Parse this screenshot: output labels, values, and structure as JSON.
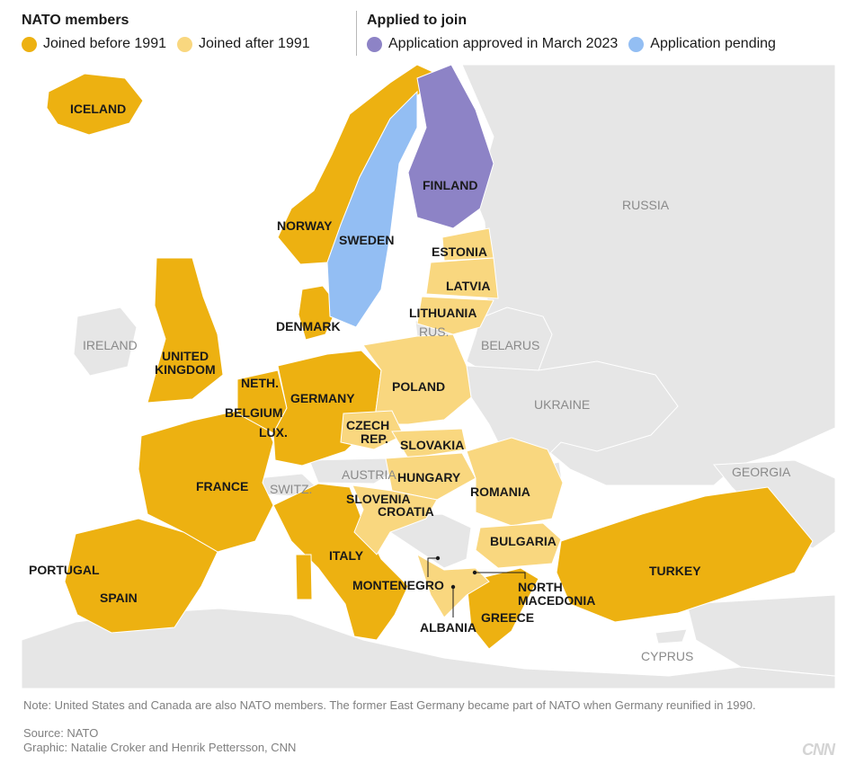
{
  "legend": {
    "members_title": "NATO members",
    "applied_title": "Applied to join",
    "items": {
      "before_1991": {
        "label": "Joined before 1991",
        "color": "#EDB111"
      },
      "after_1991": {
        "label": "Joined after 1991",
        "color": "#F9D77F"
      },
      "approved": {
        "label": "Application approved in March 2023",
        "color": "#8D83C6"
      },
      "pending": {
        "label": "Application pending",
        "color": "#93BEF3"
      }
    }
  },
  "map": {
    "colors": {
      "sea": "#ffffff",
      "other_land": "#e6e6e6",
      "borders": "#ffffff"
    },
    "countries": {
      "iceland": "ICELAND",
      "norway": "NORWAY",
      "sweden": "SWEDEN",
      "finland": "FINLAND",
      "russia": "RUSSIA",
      "estonia": "ESTONIA",
      "latvia": "LATVIA",
      "lithuania": "LITHUANIA",
      "rus": "RUS.",
      "belarus": "BELARUS",
      "denmark": "DENMARK",
      "ireland": "IRELAND",
      "uk_line1": "UNITED",
      "uk_line2": "KINGDOM",
      "neth": "NETH.",
      "germany": "GERMANY",
      "poland": "POLAND",
      "ukraine": "UKRAINE",
      "belgium": "BELGIUM",
      "lux": "LUX.",
      "czech_line1": "CZECH",
      "czech_line2": "REP.",
      "slovakia": "SLOVAKIA",
      "austria": "AUSTRIA",
      "hungary": "HUNGARY",
      "georgia": "GEORGIA",
      "france": "FRANCE",
      "switz": "SWITZ.",
      "slovenia": "SLOVENIA",
      "romania": "ROMANIA",
      "croatia": "CROATIA",
      "bulgaria": "BULGARIA",
      "italy": "ITALY",
      "portugal": "PORTUGAL",
      "turkey": "TURKEY",
      "montenegro": "MONTENEGRO",
      "north_macedonia_line1": "NORTH",
      "north_macedonia_line2": "MACEDONIA",
      "spain": "SPAIN",
      "greece": "GREECE",
      "albania": "ALBANIA",
      "cyprus": "CYPRUS"
    }
  },
  "footer": {
    "note": "Note: United States and Canada are also NATO members. The former East Germany became part of NATO when Germany reunified in 1990.",
    "source": "Source: NATO",
    "graphic": "Graphic: Natalie Croker and Henrik Pettersson, CNN",
    "brand": "CNN"
  }
}
